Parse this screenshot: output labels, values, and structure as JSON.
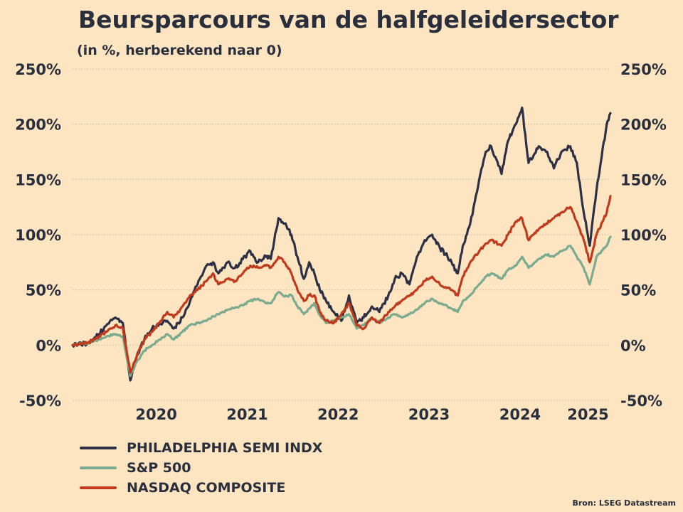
{
  "chart_data": {
    "type": "line",
    "title": "Beursparcours van de halfgeleidersector",
    "subtitle": "(in %, herberekend naar 0)",
    "ylim": [
      -50,
      250
    ],
    "yticks": [
      -50,
      0,
      50,
      100,
      150,
      200,
      250
    ],
    "ytick_labels": [
      "-50%",
      "0%",
      "50%",
      "100%",
      "150%",
      "200%",
      "250%"
    ],
    "y_axis_sides": "both",
    "xlim": [
      "2019-08-01",
      "2025-06-30"
    ],
    "xtick_labels": [
      "2020",
      "2021",
      "2022",
      "2023",
      "2024",
      "2025"
    ],
    "xtick_dates": [
      "2020-01-01",
      "2021-01-01",
      "2022-01-01",
      "2023-01-01",
      "2024-01-01",
      "2025-01-01"
    ],
    "grid": "horizontal dotted",
    "legend_placement": "bottom-left",
    "x": [
      "2019-08-01",
      "2019-10-01",
      "2019-11-15",
      "2019-12-15",
      "2020-01-20",
      "2020-02-19",
      "2020-03-20",
      "2020-04-15",
      "2020-05-15",
      "2020-06-15",
      "2020-07-15",
      "2020-08-15",
      "2020-09-10",
      "2020-10-15",
      "2020-11-15",
      "2020-12-15",
      "2021-01-20",
      "2021-02-15",
      "2021-03-08",
      "2021-04-15",
      "2021-05-15",
      "2021-06-15",
      "2021-07-15",
      "2021-08-15",
      "2021-09-15",
      "2021-10-05",
      "2021-11-05",
      "2021-11-29",
      "2021-12-27",
      "2022-01-20",
      "2022-02-15",
      "2022-03-08",
      "2022-03-29",
      "2022-04-20",
      "2022-05-15",
      "2022-06-15",
      "2022-07-15",
      "2022-08-15",
      "2022-09-15",
      "2022-10-13",
      "2022-11-15",
      "2022-12-15",
      "2023-01-20",
      "2023-02-15",
      "2023-03-15",
      "2023-04-15",
      "2023-05-15",
      "2023-06-15",
      "2023-07-15",
      "2023-08-15",
      "2023-09-15",
      "2023-10-26",
      "2023-11-15",
      "2023-12-15",
      "2024-01-20",
      "2024-02-15",
      "2024-03-08",
      "2024-04-19",
      "2024-05-15",
      "2024-06-15",
      "2024-07-10",
      "2024-08-05",
      "2024-09-15",
      "2024-10-15",
      "2024-11-15",
      "2024-12-15",
      "2025-01-20",
      "2025-02-15",
      "2025-03-15",
      "2025-04-08",
      "2025-05-05",
      "2025-06-15",
      "2025-06-30"
    ],
    "series": [
      {
        "name": "PHILADELPHIA SEMI INDX",
        "color": "#2e3045",
        "values": [
          0,
          2,
          10,
          18,
          25,
          20,
          -32,
          -10,
          5,
          15,
          20,
          22,
          15,
          25,
          40,
          55,
          72,
          75,
          65,
          75,
          70,
          78,
          85,
          75,
          80,
          78,
          115,
          110,
          100,
          80,
          60,
          75,
          65,
          50,
          40,
          30,
          22,
          45,
          20,
          25,
          35,
          30,
          45,
          60,
          65,
          55,
          80,
          95,
          100,
          88,
          80,
          65,
          90,
          110,
          150,
          175,
          180,
          155,
          185,
          200,
          215,
          165,
          180,
          175,
          160,
          175,
          180,
          165,
          120,
          90,
          140,
          200,
          210
        ]
      },
      {
        "name": "S&P 500",
        "color": "#7aaa90",
        "values": [
          0,
          2,
          5,
          8,
          10,
          8,
          -28,
          -15,
          -5,
          0,
          5,
          10,
          5,
          12,
          18,
          20,
          22,
          26,
          28,
          32,
          34,
          36,
          40,
          42,
          38,
          38,
          48,
          44,
          45,
          35,
          28,
          33,
          38,
          27,
          20,
          22,
          25,
          28,
          15,
          18,
          25,
          20,
          25,
          28,
          25,
          28,
          32,
          38,
          42,
          38,
          35,
          30,
          40,
          45,
          55,
          62,
          65,
          60,
          68,
          72,
          80,
          70,
          78,
          82,
          80,
          85,
          90,
          80,
          70,
          55,
          80,
          90,
          98
        ]
      },
      {
        "name": "NASDAQ COMPOSITE",
        "color": "#c13a1c",
        "values": [
          0,
          2,
          8,
          12,
          18,
          15,
          -25,
          -10,
          5,
          12,
          20,
          30,
          25,
          35,
          45,
          50,
          58,
          65,
          55,
          60,
          58,
          65,
          72,
          70,
          72,
          70,
          80,
          75,
          65,
          50,
          40,
          45,
          45,
          30,
          22,
          20,
          28,
          38,
          18,
          15,
          25,
          20,
          30,
          35,
          40,
          45,
          50,
          58,
          62,
          55,
          52,
          45,
          62,
          75,
          85,
          92,
          95,
          90,
          100,
          112,
          115,
          95,
          105,
          110,
          115,
          120,
          125,
          112,
          95,
          75,
          100,
          120,
          135
        ]
      }
    ]
  },
  "source": "Bron: LSEG Datastream"
}
